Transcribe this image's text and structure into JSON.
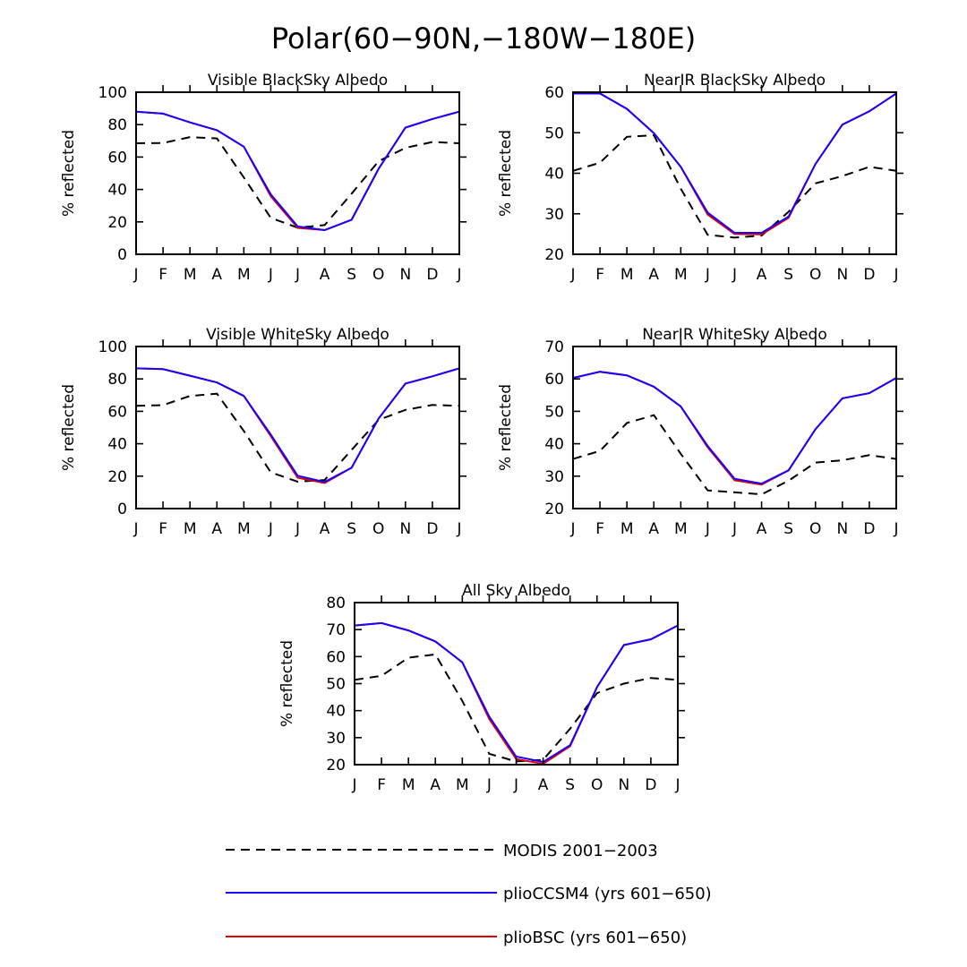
{
  "title": "Polar(60−90N,−180W−180E)",
  "colors": {
    "modis": "#000000",
    "plioCCSM4": "#1a00ff",
    "plioBSC": "#e00000"
  },
  "legend": [
    {
      "key": "modis",
      "label": "MODIS 2001−2003",
      "style": "dashed"
    },
    {
      "key": "plioCCSM4",
      "label": "plioCCSM4 (yrs 601−650)",
      "style": "solid"
    },
    {
      "key": "plioBSC",
      "label": "plioBSC (yrs 601−650)",
      "style": "solid"
    }
  ],
  "chart_data": [
    {
      "type": "line",
      "title": "Visible BlackSky Albedo",
      "ylabel": "% reflected",
      "categories": [
        "J",
        "F",
        "M",
        "A",
        "M",
        "J",
        "J",
        "A",
        "S",
        "O",
        "N",
        "D",
        "J"
      ],
      "ylim": [
        0,
        100
      ],
      "yticks": [
        0,
        20,
        40,
        60,
        80,
        100
      ],
      "series": [
        {
          "name": "MODIS 2001−2003",
          "key": "modis",
          "values": [
            68.5,
            68.7,
            72.3,
            71.5,
            47.4,
            22.5,
            16.4,
            18.0,
            37.4,
            57.4,
            65.7,
            69.3,
            68.5
          ]
        },
        {
          "name": "plioBSC (yrs 601−650)",
          "key": "plioBSC",
          "values": [
            88.0,
            86.8,
            81.4,
            76.6,
            66.4,
            35.8,
            16.3,
            14.9,
            21.3,
            52.7,
            78.2,
            83.5,
            88.0
          ]
        },
        {
          "name": "plioCCSM4 (yrs 601−650)",
          "key": "plioCCSM4",
          "values": [
            88.0,
            86.8,
            81.4,
            76.6,
            66.4,
            37.0,
            17.2,
            14.9,
            21.3,
            52.7,
            78.2,
            83.5,
            88.0
          ]
        }
      ]
    },
    {
      "type": "line",
      "title": "NearIR BlackSky Albedo",
      "ylabel": "% reflected",
      "categories": [
        "J",
        "F",
        "M",
        "A",
        "M",
        "J",
        "J",
        "A",
        "S",
        "O",
        "N",
        "D",
        "J"
      ],
      "ylim": [
        20,
        60
      ],
      "yticks": [
        20,
        30,
        40,
        50,
        60
      ],
      "series": [
        {
          "name": "MODIS 2001−2003",
          "key": "modis",
          "values": [
            40.6,
            42.6,
            49.0,
            49.4,
            36.2,
            24.8,
            24.1,
            24.6,
            30.5,
            37.5,
            39.3,
            41.6,
            40.6
          ]
        },
        {
          "name": "plioBSC (yrs 601−650)",
          "key": "plioBSC",
          "values": [
            59.7,
            59.7,
            55.9,
            49.9,
            41.6,
            29.8,
            25.0,
            24.9,
            29.0,
            42.3,
            52.0,
            55.3,
            59.7
          ]
        },
        {
          "name": "plioCCSM4 (yrs 601−650)",
          "key": "plioCCSM4",
          "values": [
            59.7,
            59.7,
            55.9,
            49.9,
            41.6,
            30.3,
            25.3,
            25.3,
            29.3,
            42.3,
            52.0,
            55.3,
            59.7
          ]
        }
      ]
    },
    {
      "type": "line",
      "title": "Visible WhiteSky Albedo",
      "ylabel": "% reflected",
      "categories": [
        "J",
        "F",
        "M",
        "A",
        "M",
        "J",
        "J",
        "A",
        "S",
        "O",
        "N",
        "D",
        "J"
      ],
      "ylim": [
        0,
        100
      ],
      "yticks": [
        0,
        20,
        40,
        60,
        80,
        100
      ],
      "series": [
        {
          "name": "MODIS 2001−2003",
          "key": "modis",
          "values": [
            63.4,
            63.8,
            69.5,
            70.9,
            47.9,
            22.4,
            16.6,
            17.6,
            36.2,
            54.7,
            60.9,
            63.9,
            63.4
          ]
        },
        {
          "name": "plioBSC (yrs 601−650)",
          "key": "plioBSC",
          "values": [
            86.5,
            86.0,
            82.0,
            77.8,
            69.5,
            44.7,
            19.0,
            15.8,
            25.2,
            55.5,
            77.1,
            81.6,
            86.5
          ]
        },
        {
          "name": "plioCCSM4 (yrs 601−650)",
          "key": "plioCCSM4",
          "values": [
            86.5,
            86.0,
            82.0,
            77.8,
            69.5,
            45.7,
            20.2,
            16.4,
            25.2,
            55.5,
            77.1,
            81.6,
            86.5
          ]
        }
      ]
    },
    {
      "type": "line",
      "title": "NearIR WhiteSky Albedo",
      "ylabel": "% reflected",
      "categories": [
        "J",
        "F",
        "M",
        "A",
        "M",
        "J",
        "J",
        "A",
        "S",
        "O",
        "N",
        "D",
        "J"
      ],
      "ylim": [
        20,
        70
      ],
      "yticks": [
        20,
        30,
        40,
        50,
        60,
        70
      ],
      "series": [
        {
          "name": "MODIS 2001−2003",
          "key": "modis",
          "values": [
            35.3,
            37.8,
            46.4,
            48.8,
            36.9,
            25.6,
            25.0,
            24.4,
            28.6,
            34.2,
            34.9,
            36.5,
            35.3
          ]
        },
        {
          "name": "plioBSC (yrs 601−650)",
          "key": "plioBSC",
          "values": [
            60.3,
            62.2,
            61.1,
            57.6,
            51.5,
            38.9,
            28.7,
            27.4,
            31.8,
            44.5,
            54.0,
            55.6,
            60.3
          ]
        },
        {
          "name": "plioCCSM4 (yrs 601−650)",
          "key": "plioCCSM4",
          "values": [
            60.3,
            62.2,
            61.1,
            57.6,
            51.5,
            39.3,
            29.2,
            27.7,
            31.8,
            44.5,
            54.0,
            55.6,
            60.3
          ]
        }
      ]
    },
    {
      "type": "line",
      "title": "All Sky Albedo",
      "ylabel": "% reflected",
      "categories": [
        "J",
        "F",
        "M",
        "A",
        "M",
        "J",
        "J",
        "A",
        "S",
        "O",
        "N",
        "D",
        "J"
      ],
      "ylim": [
        20,
        80
      ],
      "yticks": [
        20,
        30,
        40,
        50,
        60,
        70,
        80
      ],
      "series": [
        {
          "name": "MODIS 2001−2003",
          "key": "modis",
          "values": [
            51.4,
            52.9,
            59.6,
            60.8,
            43.6,
            24.0,
            21.2,
            21.8,
            33.3,
            46.5,
            50.0,
            52.1,
            51.4
          ]
        },
        {
          "name": "plioBSC (yrs 601−650)",
          "key": "plioBSC",
          "values": [
            71.5,
            72.4,
            69.7,
            65.6,
            57.9,
            36.9,
            22.1,
            20.3,
            26.8,
            48.7,
            64.3,
            66.4,
            71.5
          ]
        },
        {
          "name": "plioCCSM4 (yrs 601−650)",
          "key": "plioCCSM4",
          "values": [
            71.5,
            72.4,
            69.7,
            65.6,
            57.9,
            37.8,
            23.0,
            21.0,
            27.2,
            48.7,
            64.3,
            66.4,
            71.5
          ]
        }
      ]
    }
  ]
}
